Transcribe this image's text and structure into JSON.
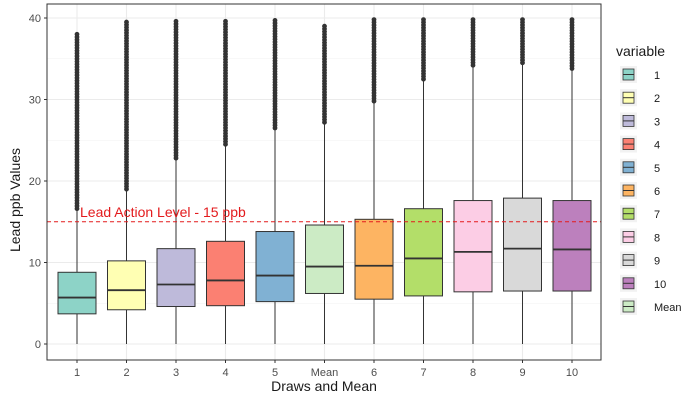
{
  "chart_data": {
    "type": "boxplot",
    "xlabel": "Draws and Mean",
    "ylabel": "Lead ppb Values",
    "ylim": [
      0,
      40
    ],
    "yticks": [
      0,
      10,
      20,
      30,
      40
    ],
    "categories": [
      "1",
      "2",
      "3",
      "4",
      "5",
      "Mean",
      "6",
      "7",
      "8",
      "9",
      "10"
    ],
    "boxes": [
      {
        "category": "1",
        "color": "#8DD3C7",
        "whisker_low": 0,
        "q1": 3.7,
        "median": 5.7,
        "q3": 8.8,
        "whisker_high": 16.6,
        "outliers_low": 16.6,
        "outliers_high": 38.0
      },
      {
        "category": "2",
        "color": "#FFFFB3",
        "whisker_low": 0,
        "q1": 4.2,
        "median": 6.6,
        "q3": 10.2,
        "whisker_high": 19.0,
        "outliers_low": 19.0,
        "outliers_high": 39.5
      },
      {
        "category": "3",
        "color": "#BEBADA",
        "whisker_low": 0,
        "q1": 4.6,
        "median": 7.3,
        "q3": 11.7,
        "whisker_high": 22.8,
        "outliers_low": 22.8,
        "outliers_high": 39.6
      },
      {
        "category": "4",
        "color": "#FB8072",
        "whisker_low": 0,
        "q1": 4.7,
        "median": 7.8,
        "q3": 12.6,
        "whisker_high": 24.5,
        "outliers_low": 24.5,
        "outliers_high": 39.6
      },
      {
        "category": "5",
        "color": "#80B1D3",
        "whisker_low": 0,
        "q1": 5.2,
        "median": 8.4,
        "q3": 13.8,
        "whisker_high": 26.5,
        "outliers_low": 26.5,
        "outliers_high": 39.7
      },
      {
        "category": "Mean",
        "color": "#CCEBC5",
        "whisker_low": 0,
        "q1": 6.2,
        "median": 9.5,
        "q3": 14.6,
        "whisker_high": 27.2,
        "outliers_low": 27.2,
        "outliers_high": 39.0
      },
      {
        "category": "6",
        "color": "#FDB462",
        "whisker_low": 0,
        "q1": 5.5,
        "median": 9.6,
        "q3": 15.3,
        "whisker_high": 29.8,
        "outliers_low": 29.8,
        "outliers_high": 39.8
      },
      {
        "category": "7",
        "color": "#B3DE69",
        "whisker_low": 0,
        "q1": 5.9,
        "median": 10.5,
        "q3": 16.6,
        "whisker_high": 32.5,
        "outliers_low": 32.5,
        "outliers_high": 39.8
      },
      {
        "category": "8",
        "color": "#FCCDE5",
        "whisker_low": 0,
        "q1": 6.4,
        "median": 11.3,
        "q3": 17.6,
        "whisker_high": 34.2,
        "outliers_low": 34.2,
        "outliers_high": 39.8
      },
      {
        "category": "9",
        "color": "#D9D9D9",
        "whisker_low": 0,
        "q1": 6.5,
        "median": 11.7,
        "q3": 17.9,
        "whisker_high": 34.5,
        "outliers_low": 34.5,
        "outliers_high": 39.8
      },
      {
        "category": "10",
        "color": "#BC80BD",
        "whisker_low": 0,
        "q1": 6.5,
        "median": 11.6,
        "q3": 17.6,
        "whisker_high": 33.8,
        "outliers_low": 33.8,
        "outliers_high": 39.8
      }
    ],
    "reference_line": {
      "y": 15,
      "label": "Lead Action Level - 15 ppb",
      "color": "#E31A1C",
      "style": "dashed"
    },
    "legend": {
      "title": "variable",
      "placement": "right",
      "items": [
        {
          "label": "1",
          "color": "#8DD3C7"
        },
        {
          "label": "2",
          "color": "#FFFFB3"
        },
        {
          "label": "3",
          "color": "#BEBADA"
        },
        {
          "label": "4",
          "color": "#FB8072"
        },
        {
          "label": "5",
          "color": "#80B1D3"
        },
        {
          "label": "6",
          "color": "#FDB462"
        },
        {
          "label": "7",
          "color": "#B3DE69"
        },
        {
          "label": "8",
          "color": "#FCCDE5"
        },
        {
          "label": "9",
          "color": "#D9D9D9"
        },
        {
          "label": "10",
          "color": "#BC80BD"
        },
        {
          "label": "Mean",
          "color": "#CCEBC5"
        }
      ]
    },
    "grid": true,
    "theme": "bw"
  }
}
